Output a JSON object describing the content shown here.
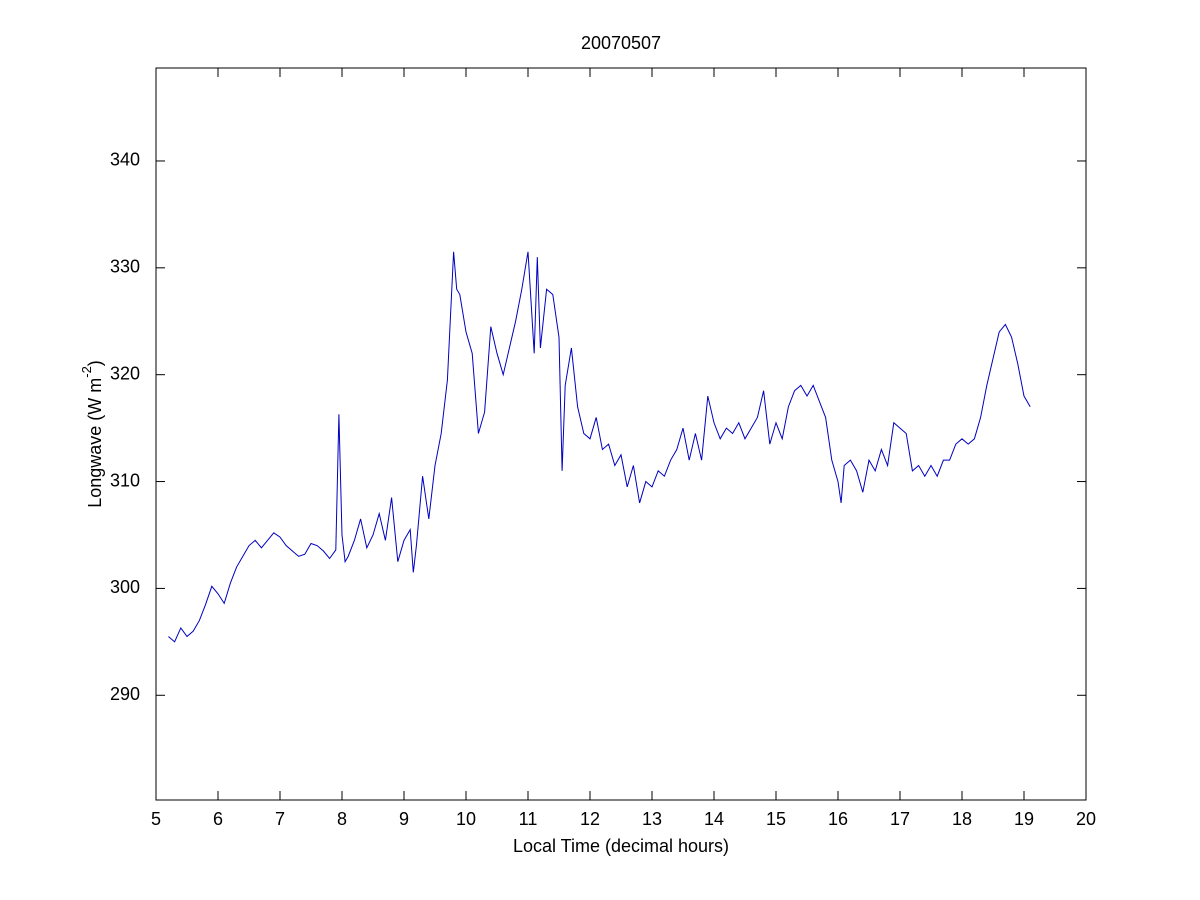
{
  "chart_data": {
    "type": "line",
    "title": "20070507",
    "xlabel": "Local Time (decimal hours)",
    "ylabel": [
      "Longwave (W m",
      "-2",
      ")"
    ],
    "xlim": [
      5,
      20
    ],
    "xticks": [
      5,
      6,
      7,
      8,
      9,
      10,
      11,
      12,
      13,
      14,
      15,
      16,
      17,
      18,
      19,
      20
    ],
    "ylim": [
      280.2,
      348.7
    ],
    "yticks": [
      290,
      300,
      310,
      320,
      330,
      340
    ],
    "series": [
      {
        "color": "#0000c0",
        "x": [
          5.2,
          5.3,
          5.4,
          5.5,
          5.6,
          5.7,
          5.8,
          5.9,
          6.0,
          6.1,
          6.2,
          6.3,
          6.4,
          6.5,
          6.6,
          6.7,
          6.8,
          6.9,
          7.0,
          7.1,
          7.2,
          7.3,
          7.4,
          7.5,
          7.6,
          7.7,
          7.8,
          7.9,
          7.95,
          8.0,
          8.05,
          8.1,
          8.2,
          8.3,
          8.4,
          8.5,
          8.6,
          8.7,
          8.8,
          8.9,
          9.0,
          9.1,
          9.15,
          9.2,
          9.3,
          9.4,
          9.5,
          9.6,
          9.7,
          9.8,
          9.85,
          9.9,
          10.0,
          10.1,
          10.2,
          10.3,
          10.4,
          10.5,
          10.6,
          10.7,
          10.8,
          10.9,
          11.0,
          11.1,
          11.15,
          11.2,
          11.3,
          11.4,
          11.5,
          11.55,
          11.6,
          11.7,
          11.8,
          11.9,
          12.0,
          12.1,
          12.2,
          12.3,
          12.4,
          12.5,
          12.6,
          12.7,
          12.8,
          12.9,
          13.0,
          13.1,
          13.2,
          13.3,
          13.4,
          13.5,
          13.6,
          13.7,
          13.8,
          13.9,
          14.0,
          14.1,
          14.2,
          14.3,
          14.4,
          14.5,
          14.6,
          14.7,
          14.8,
          14.9,
          15.0,
          15.1,
          15.2,
          15.3,
          15.4,
          15.5,
          15.6,
          15.7,
          15.8,
          15.9,
          16.0,
          16.05,
          16.1,
          16.2,
          16.3,
          16.4,
          16.5,
          16.6,
          16.7,
          16.8,
          16.9,
          17.0,
          17.1,
          17.2,
          17.3,
          17.4,
          17.5,
          17.6,
          17.7,
          17.8,
          17.9,
          18.0,
          18.1,
          18.2,
          18.3,
          18.4,
          18.5,
          18.6,
          18.7,
          18.8,
          18.9,
          19.0,
          19.1
        ],
        "values": [
          295.5,
          295,
          296.3,
          295.5,
          296,
          297,
          298.5,
          300.2,
          299.5,
          298.6,
          300.5,
          302,
          303,
          304,
          304.5,
          303.8,
          304.5,
          305.2,
          304.8,
          304,
          303.5,
          303,
          303.2,
          304.2,
          304,
          303.5,
          302.8,
          303.6,
          316.3,
          305,
          302.5,
          303,
          304.5,
          306.5,
          303.8,
          305,
          307,
          304.5,
          308.5,
          302.5,
          304.5,
          305.5,
          301.5,
          304,
          310.5,
          306.5,
          311.5,
          314.5,
          319.5,
          331.5,
          328,
          327.5,
          324,
          322,
          314.5,
          316.5,
          324.5,
          322,
          320,
          322.5,
          325,
          328,
          331.5,
          322,
          331,
          322.5,
          328,
          327.5,
          323.5,
          311,
          319,
          322.5,
          317,
          314.5,
          314,
          316,
          313,
          313.5,
          311.5,
          312.5,
          309.5,
          311.5,
          308,
          310,
          309.5,
          311,
          310.5,
          312,
          313,
          315,
          312,
          314.5,
          312,
          318,
          315.5,
          314,
          315,
          314.5,
          315.5,
          314,
          315,
          316,
          318.5,
          313.5,
          315.5,
          314,
          317,
          318.5,
          319,
          318,
          319,
          317.5,
          316,
          312,
          310,
          308,
          311.5,
          312,
          311,
          309,
          312,
          311,
          313,
          311.5,
          315.5,
          315,
          314.5,
          311,
          311.5,
          310.5,
          311.5,
          310.5,
          312,
          312,
          313.5,
          314,
          313.5,
          314,
          316,
          319,
          321.5,
          324,
          324.7,
          323.5,
          321,
          318,
          317
        ]
      }
    ]
  }
}
